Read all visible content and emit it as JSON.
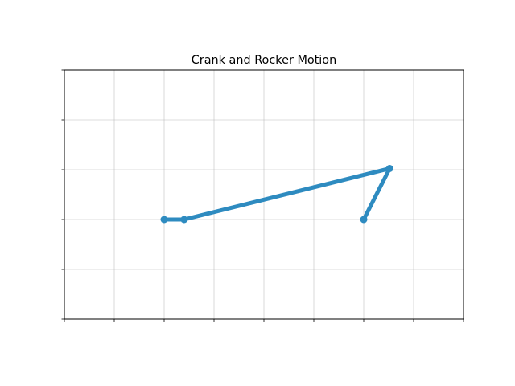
{
  "chart_data": {
    "type": "line",
    "title": "Crank and Rocker Motion",
    "xlabel": "",
    "ylabel": "",
    "xlim": [
      -1,
      3
    ],
    "ylim": [
      -1,
      1
    ],
    "x_ticks": [
      -1,
      -0.5,
      0,
      0.5,
      1,
      1.5,
      2,
      2.5,
      3
    ],
    "y_ticks": [
      -1,
      -0.6,
      -0.2,
      0.2,
      0.6,
      1
    ],
    "grid": true,
    "tick_labels_visible": false,
    "series": [
      {
        "x": [
          0,
          0.2,
          2.26,
          2.0
        ],
        "y": [
          -0.2,
          -0.2,
          0.21,
          -0.2
        ],
        "color": "#2e8bc0",
        "marker": "circle"
      }
    ]
  }
}
